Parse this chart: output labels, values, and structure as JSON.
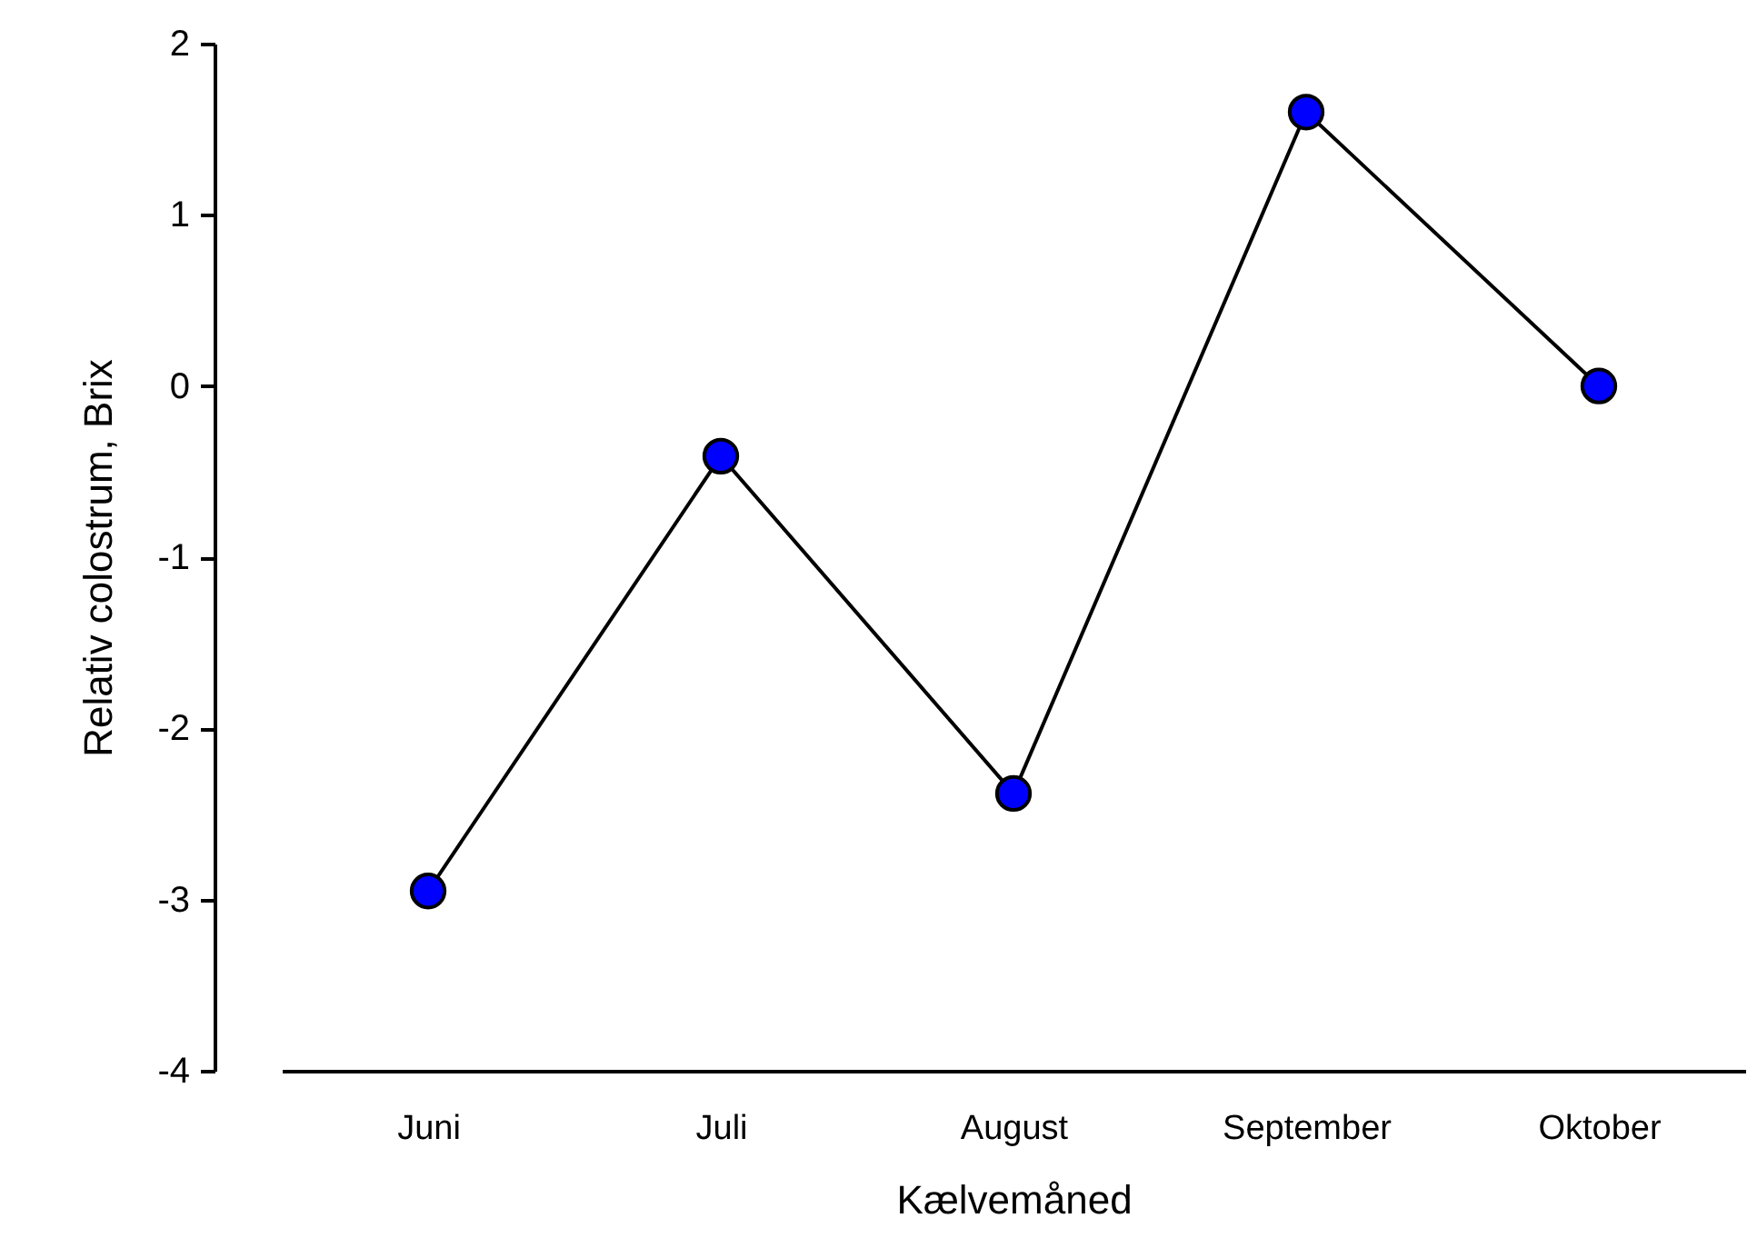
{
  "chart_data": {
    "type": "line",
    "xlabel": "Kælvemåned",
    "ylabel": "Relativ colostrum, Brix",
    "categories": [
      "Juni",
      "Juli",
      "August",
      "September",
      "Oktober"
    ],
    "series": [
      {
        "color": "#0000ff",
        "values": [
          -2.95,
          -0.41,
          -2.38,
          1.6,
          0
        ]
      }
    ],
    "ylim": [
      -4,
      2
    ],
    "yticks": [
      -4,
      -3,
      -2,
      -1,
      0,
      1,
      2
    ],
    "marker": "circle",
    "line_style": "solid"
  }
}
